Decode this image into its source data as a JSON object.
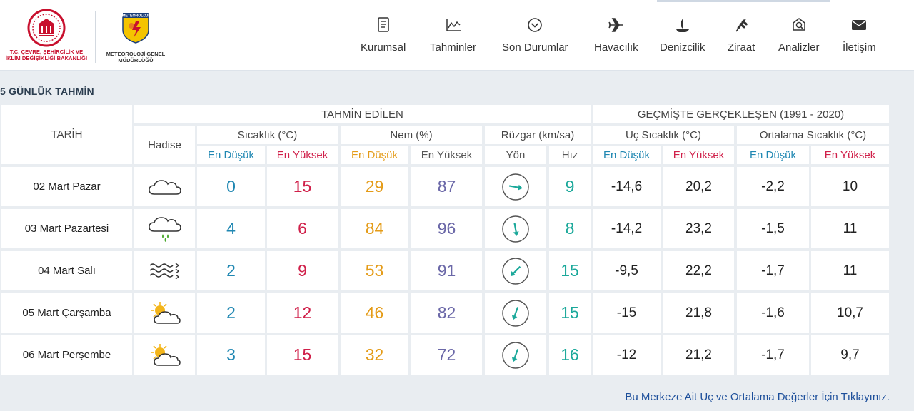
{
  "header": {
    "ministry_name": "T.C. ÇEVRE, ŞEHİRCİLİK VE İKLİM DEĞİŞİKLİĞİ BAKANLIĞI",
    "mgm_shield_text": "METEOROLOJİ",
    "mgm_name": "METEOROLOJİ GENEL MÜDÜRLÜĞÜ",
    "nav": [
      {
        "label": "Kurumsal",
        "icon": "document-icon"
      },
      {
        "label": "Tahminler",
        "icon": "chart-icon"
      },
      {
        "label": "Son Durumlar",
        "icon": "chevron-circle-icon"
      },
      {
        "label": "Havacılık",
        "icon": "airplane-icon"
      },
      {
        "label": "Denizcilik",
        "icon": "sailboat-icon"
      },
      {
        "label": "Ziraat",
        "icon": "wheat-icon"
      },
      {
        "label": "Analizler",
        "icon": "analysis-icon"
      },
      {
        "label": "İletişim",
        "icon": "envelope-icon"
      }
    ]
  },
  "section_title": "5 GÜNLÜK TAHMİN",
  "table": {
    "tarih": "TARİH",
    "hadise": "Hadise",
    "tahmin_edilen": "TAHMİN EDİLEN",
    "gecmiste": "GEÇMİŞTE GERÇEKLEŞEN (1991 - 2020)",
    "sicaklik": "Sıcaklık (°C)",
    "nem": "Nem (%)",
    "ruzgar": "Rüzgar (km/sa)",
    "uc_sicaklik": "Uç Sıcaklık (°C)",
    "ortalama_sicaklik": "Ortalama Sıcaklık (°C)",
    "en_dusuk": "En Düşük",
    "en_yuksek": "En Yüksek",
    "yon": "Yön",
    "hiz": "Hız",
    "rows": [
      {
        "date": "02 Mart Pazar",
        "icon": "cloud-icon",
        "min": "0",
        "max": "15",
        "hum_min": "29",
        "hum_max": "87",
        "wind_dir_deg": 100,
        "wind_speed": "9",
        "ext_min": "-14,6",
        "ext_max": "20,2",
        "avg_min": "-2,2",
        "avg_max": "10"
      },
      {
        "date": "03 Mart Pazartesi",
        "icon": "rain-cloud-icon",
        "min": "4",
        "max": "6",
        "hum_min": "84",
        "hum_max": "96",
        "wind_dir_deg": 170,
        "wind_speed": "8",
        "ext_min": "-14,2",
        "ext_max": "23,2",
        "avg_min": "-1,5",
        "avg_max": "11"
      },
      {
        "date": "04 Mart Salı",
        "icon": "wind-waves-icon",
        "min": "2",
        "max": "9",
        "hum_min": "53",
        "hum_max": "91",
        "wind_dir_deg": 225,
        "wind_speed": "15",
        "ext_min": "-9,5",
        "ext_max": "22,2",
        "avg_min": "-1,7",
        "avg_max": "11"
      },
      {
        "date": "05 Mart Çarşamba",
        "icon": "partly-cloudy-icon",
        "min": "2",
        "max": "12",
        "hum_min": "46",
        "hum_max": "82",
        "wind_dir_deg": 200,
        "wind_speed": "15",
        "ext_min": "-15",
        "ext_max": "21,8",
        "avg_min": "-1,6",
        "avg_max": "10,7"
      },
      {
        "date": "06 Mart Perşembe",
        "icon": "partly-cloudy-icon",
        "min": "3",
        "max": "15",
        "hum_min": "32",
        "hum_max": "72",
        "wind_dir_deg": 200,
        "wind_speed": "16",
        "ext_min": "-12",
        "ext_max": "21,2",
        "avg_min": "-1,7",
        "avg_max": "9,7"
      }
    ]
  },
  "footer_link": "Bu Merkeze Ait Uç ve Ortalama Değerler İçin Tıklayınız.",
  "colors": {
    "low": "#1f87b2",
    "high": "#d0204a",
    "humidity_low": "#e49b17",
    "humidity_high": "#6b68a8",
    "wind": "#1aa89a"
  }
}
